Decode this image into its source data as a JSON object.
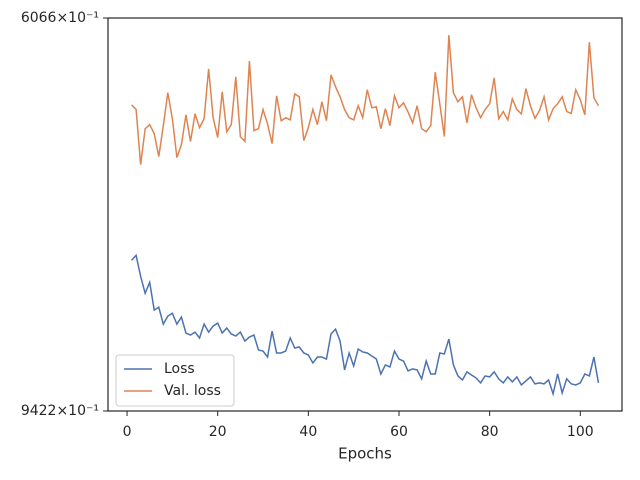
{
  "chart_data": {
    "type": "line",
    "xlabel": "Epochs",
    "log_y": true,
    "legend": "lower left",
    "x": [
      1,
      2,
      3,
      4,
      5,
      6,
      7,
      8,
      9,
      10,
      11,
      12,
      13,
      14,
      15,
      16,
      17,
      18,
      19,
      20,
      21,
      22,
      23,
      24,
      25,
      26,
      27,
      28,
      29,
      30,
      31,
      32,
      33,
      34,
      35,
      36,
      37,
      38,
      39,
      40,
      41,
      42,
      43,
      44,
      45,
      46,
      47,
      48,
      49,
      50,
      51,
      52,
      53,
      54,
      55,
      56,
      57,
      58,
      59,
      60,
      61,
      62,
      63,
      64,
      65,
      66,
      67,
      68,
      69,
      70,
      71,
      72,
      73,
      74,
      75,
      76,
      77,
      78,
      79,
      80,
      81,
      82,
      83,
      84,
      85,
      86,
      87,
      88,
      89,
      90,
      91,
      92,
      93,
      94,
      95,
      96,
      97,
      98,
      99,
      100,
      101,
      102,
      103,
      104
    ],
    "series": [
      {
        "name": "Loss",
        "color": "#4c72b0",
        "values": [
          795.8,
          791.4,
          810.2,
          825.8,
          815.7,
          841.5,
          838.7,
          854.8,
          847.2,
          844.4,
          854.8,
          848.1,
          863.4,
          865.3,
          862.5,
          868.2,
          854.8,
          862.5,
          856.7,
          853.8,
          863.4,
          858.6,
          864.3,
          866.3,
          862.5,
          871.2,
          867.3,
          865.3,
          880.0,
          881.0,
          886.9,
          861.5,
          882.9,
          882.9,
          881.0,
          868.2,
          878.0,
          877.0,
          882.9,
          884.9,
          892.8,
          886.9,
          886.9,
          888.9,
          864.3,
          859.6,
          871.2,
          899.8,
          882.9,
          895.8,
          879.0,
          881.9,
          882.9,
          885.9,
          888.9,
          903.9,
          894.8,
          896.8,
          881.0,
          888.9,
          890.9,
          900.8,
          898.8,
          899.8,
          908.9,
          890.9,
          903.9,
          903.9,
          882.9,
          883.9,
          869.2,
          894.8,
          905.9,
          910.0,
          901.8,
          904.9,
          907.9,
          913.0,
          905.9,
          906.9,
          901.8,
          908.9,
          913.0,
          906.9,
          912.0,
          906.9,
          915.1,
          911.0,
          906.9,
          914.0,
          913.0,
          914.0,
          910.0,
          924.3,
          903.9,
          923.3,
          908.9,
          914.0,
          915.1,
          913.0,
          903.9,
          905.9,
          886.9,
          913.0
        ]
      },
      {
        "name": "Val. loss",
        "color": "#dd8452",
        "values": [
          668.6,
          672.1,
          714.9,
          686.7,
          683.6,
          690.5,
          708.5,
          684.4,
          659.6,
          679.1,
          709.3,
          699.0,
          676.1,
          696.6,
          675.4,
          685.9,
          679.1,
          642.2,
          678.3,
          693.6,
          658.9,
          689.0,
          683.6,
          648.0,
          692.8,
          696.6,
          636.6,
          688.2,
          686.7,
          672.1,
          683.0,
          698.3,
          661.9,
          680.6,
          678.3,
          680.0,
          660.4,
          662.6,
          695.9,
          685.9,
          672.1,
          683.6,
          666.3,
          680.6,
          646.6,
          655.2,
          662.6,
          672.1,
          678.3,
          680.0,
          669.3,
          678.3,
          657.4,
          670.8,
          670.1,
          686.7,
          671.5,
          684.4,
          661.9,
          670.8,
          667.1,
          674.0,
          682.2,
          669.3,
          686.7,
          689.0,
          684.4,
          644.6,
          667.8,
          692.8,
          618.4,
          659.6,
          666.3,
          662.6,
          682.2,
          661.1,
          670.8,
          678.3,
          672.1,
          667.8,
          648.7,
          679.1,
          673.6,
          680.0,
          664.1,
          672.1,
          675.4,
          656.6,
          669.3,
          678.8,
          672.8,
          662.6,
          680.0,
          671.5,
          667.8,
          662.6,
          673.6,
          675.1,
          657.4,
          664.8,
          676.1,
          623.3,
          663.3,
          669.3
        ]
      }
    ],
    "xlim": [
      -4.2,
      109.2
    ],
    "xticks": [
      0,
      20,
      40,
      60,
      80,
      100
    ],
    "ylim": [
      942.2,
      606.6
    ],
    "yticks": [
      {
        "value": 942.2,
        "label": "9422×10⁻¹"
      },
      {
        "value": 606.6,
        "label": "6066×10⁻¹"
      }
    ]
  }
}
